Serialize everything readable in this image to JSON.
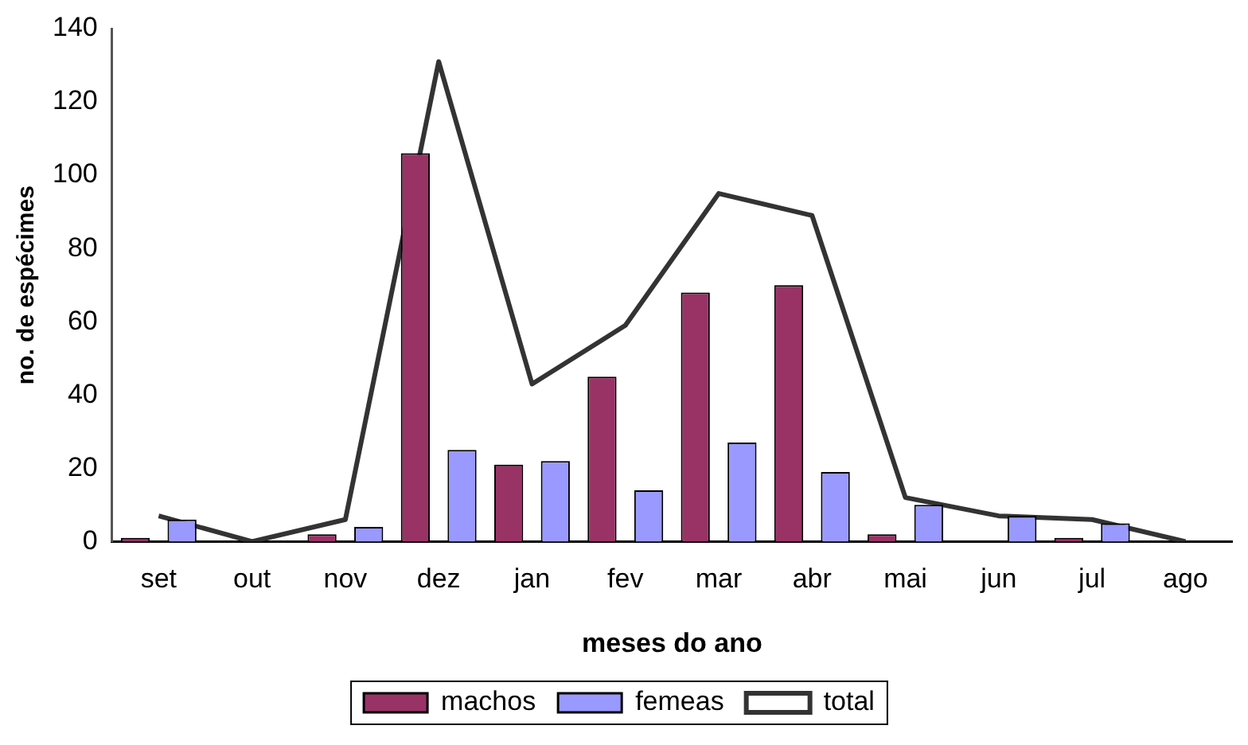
{
  "chart_data": {
    "type": "bar",
    "xlabel": "meses do ano",
    "ylabel": "no. de espécimes",
    "categories": [
      "set",
      "out",
      "nov",
      "dez",
      "jan",
      "fev",
      "mar",
      "abr",
      "mai",
      "jun",
      "jul",
      "ago"
    ],
    "series": [
      {
        "name": "machos",
        "color": "#993366",
        "values": [
          1,
          0,
          2,
          106,
          21,
          45,
          68,
          70,
          2,
          0,
          1,
          0
        ]
      },
      {
        "name": "femeas",
        "color": "#9999ff",
        "values": [
          6,
          0,
          4,
          25,
          22,
          14,
          27,
          19,
          10,
          7,
          5,
          0
        ]
      },
      {
        "name": "total",
        "type": "line",
        "color": "#333333",
        "values": [
          7,
          0,
          6,
          131,
          43,
          59,
          95,
          89,
          12,
          7,
          6,
          0
        ]
      }
    ],
    "ylim": [
      0,
      140
    ],
    "yticks": [
      0,
      20,
      40,
      60,
      80,
      100,
      120,
      140
    ],
    "grid": false,
    "legend": "bottom",
    "marker": "none"
  }
}
